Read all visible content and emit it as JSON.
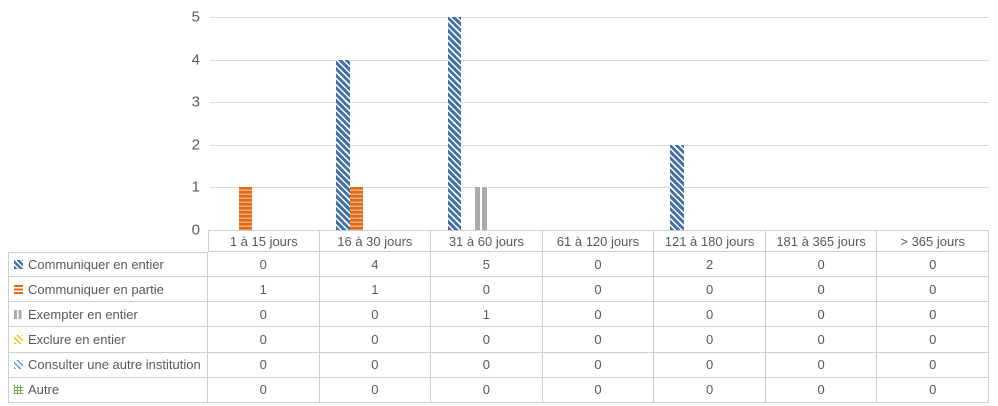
{
  "chart": {
    "background": "#ffffff",
    "grid_color": "#d9d9d9",
    "text_color": "#595959",
    "border_color": "#cfcfcf"
  },
  "chart_data": {
    "type": "bar",
    "title": "",
    "xlabel": "",
    "ylabel": "",
    "categories": [
      "1 à 15 jours",
      "16 à 30 jours",
      "31 à 60 jours",
      "61 à 120 jours",
      "121 à 180 jours",
      "181 à 365 jours",
      "> 365 jours"
    ],
    "series": [
      {
        "name": "Communiquer en entier",
        "values": [
          0,
          4,
          5,
          0,
          2,
          0,
          0
        ],
        "color": "#4472a4",
        "pattern": "diagonal"
      },
      {
        "name": "Communiquer en partie",
        "values": [
          1,
          1,
          0,
          0,
          0,
          0,
          0
        ],
        "color": "#ed7d31",
        "pattern": "horizontal"
      },
      {
        "name": "Exempter en entier",
        "values": [
          0,
          0,
          1,
          0,
          0,
          0,
          0
        ],
        "color": "#ababab",
        "pattern": "vertical"
      },
      {
        "name": "Exclure en entier",
        "values": [
          0,
          0,
          0,
          0,
          0,
          0,
          0
        ],
        "color": "#ffc000",
        "pattern": "diagonal-light"
      },
      {
        "name": "Consulter une autre institution",
        "values": [
          0,
          0,
          0,
          0,
          0,
          0,
          0
        ],
        "color": "#5b9bd5",
        "pattern": "diagonal-thin"
      },
      {
        "name": "Autre",
        "values": [
          0,
          0,
          0,
          0,
          0,
          0,
          0
        ],
        "color": "#70ad47",
        "pattern": "hash"
      }
    ],
    "ylim": [
      0,
      5
    ],
    "yticks": [
      0,
      1,
      2,
      3,
      4,
      5
    ],
    "grid": true,
    "legend_position": "table-rows-left",
    "data_table_shown": true
  }
}
